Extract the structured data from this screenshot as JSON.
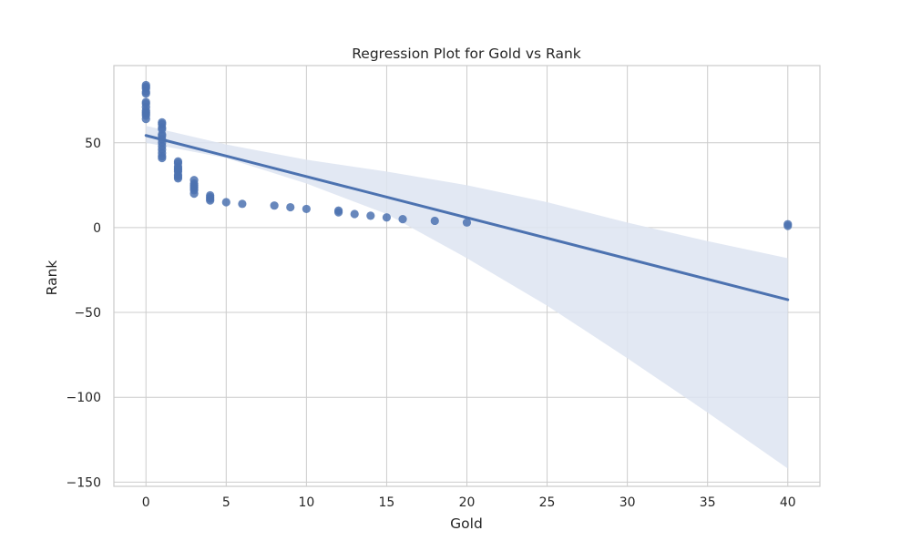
{
  "chart_data": {
    "type": "scatter",
    "title": "Regression Plot for Gold vs Rank",
    "xlabel": "Gold",
    "ylabel": "Rank",
    "xlim": [
      -2,
      42
    ],
    "ylim": [
      -152.5,
      95.5
    ],
    "xticks": [
      0,
      5,
      10,
      15,
      20,
      25,
      30,
      35,
      40
    ],
    "yticks": [
      -150,
      -100,
      -50,
      0,
      50
    ],
    "ytick_labels": [
      "−150",
      "−100",
      "−50",
      "0",
      "50"
    ],
    "grid": true,
    "legend": "none",
    "points": [
      [
        0,
        84
      ],
      [
        0,
        83
      ],
      [
        0,
        82
      ],
      [
        0,
        80
      ],
      [
        0,
        79
      ],
      [
        0,
        74
      ],
      [
        0,
        73
      ],
      [
        0,
        71
      ],
      [
        0,
        69
      ],
      [
        0,
        68
      ],
      [
        0,
        67
      ],
      [
        0,
        66
      ],
      [
        0,
        64
      ],
      [
        1,
        62
      ],
      [
        1,
        61
      ],
      [
        1,
        59
      ],
      [
        1,
        58
      ],
      [
        1,
        55
      ],
      [
        1,
        54
      ],
      [
        1,
        52
      ],
      [
        1,
        50
      ],
      [
        1,
        48
      ],
      [
        1,
        46
      ],
      [
        1,
        44
      ],
      [
        1,
        42
      ],
      [
        1,
        41
      ],
      [
        2,
        39
      ],
      [
        2,
        38
      ],
      [
        2,
        36
      ],
      [
        2,
        35
      ],
      [
        2,
        34
      ],
      [
        2,
        33
      ],
      [
        2,
        31
      ],
      [
        2,
        30
      ],
      [
        2,
        29
      ],
      [
        3,
        28
      ],
      [
        3,
        26
      ],
      [
        3,
        25
      ],
      [
        3,
        24
      ],
      [
        3,
        23
      ],
      [
        3,
        22
      ],
      [
        3,
        20
      ],
      [
        4,
        19
      ],
      [
        4,
        18
      ],
      [
        4,
        17
      ],
      [
        4,
        16
      ],
      [
        5,
        15
      ],
      [
        6,
        14
      ],
      [
        8,
        13
      ],
      [
        9,
        12
      ],
      [
        10,
        11
      ],
      [
        12,
        10
      ],
      [
        12,
        9
      ],
      [
        13,
        8
      ],
      [
        14,
        7
      ],
      [
        15,
        6
      ],
      [
        16,
        5
      ],
      [
        18,
        4
      ],
      [
        20,
        3
      ],
      [
        40,
        2
      ],
      [
        40,
        1
      ]
    ],
    "regression": {
      "x": [
        0,
        40
      ],
      "y": [
        54.3,
        -42.5
      ]
    },
    "confidence_band": {
      "x": [
        0,
        5,
        10,
        15,
        20,
        25,
        30,
        35,
        40
      ],
      "upper": [
        60,
        49,
        40,
        33,
        25,
        15,
        3,
        -8,
        -18
      ],
      "lower": [
        50,
        41,
        26,
        8,
        -18,
        -46,
        -77,
        -109,
        -142
      ]
    },
    "colors": {
      "points": "#4c72b0",
      "line": "#4c72b0",
      "band": "#dde4f1",
      "grid": "#cccccc",
      "spine": "#cccccc"
    }
  }
}
